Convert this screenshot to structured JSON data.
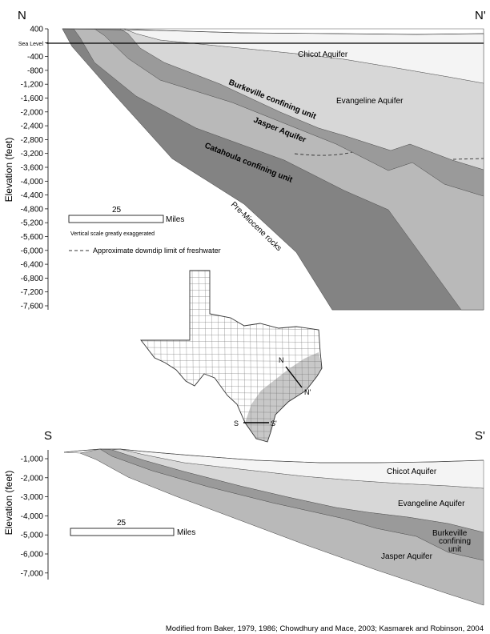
{
  "top_section": {
    "left_label": "N",
    "right_label": "N'",
    "y_axis_label": "Elevation (feet)",
    "y_ticks": [
      "400",
      "Sea Level",
      "-400",
      "-800",
      "-1,200",
      "-1,600",
      "-2,000",
      "-2,400",
      "-2,800",
      "-3,200",
      "-3,600",
      "-4,000",
      "-4,400",
      "-4,800",
      "-5,200",
      "-5,600",
      "-6,000",
      "-6,400",
      "-6,800",
      "-7,200",
      "-7,600"
    ],
    "units": {
      "chicot": "Chicot Aquifer",
      "evangeline": "Evangeline Aquifer",
      "burkeville": "Burkeville confining unit",
      "jasper": "Jasper  Aquifer",
      "catahoula": "Catahoula confining unit",
      "pre_miocene": "Pre-Miocene rocks"
    },
    "scale_value": "25",
    "scale_unit": "Miles",
    "vertical_note": "Vertical scale greatly exaggerated",
    "freshwater_legend": "Approximate downdip limit of freshwater"
  },
  "map": {
    "label_n": "N",
    "label_n_prime": "N'",
    "label_s": "S",
    "label_s_prime": "S'"
  },
  "bottom_section": {
    "left_label": "S",
    "right_label": "S'",
    "y_axis_label": "Elevation (feet)",
    "y_ticks": [
      "-1,000",
      "-2,000",
      "-3,000",
      "-4,000",
      "-5,000",
      "-6,000",
      "-7,000"
    ],
    "units": {
      "chicot": "Chicot  Aquifer",
      "evangeline": "Evangeline  Aquifer",
      "burkeville_1": "Burkeville",
      "burkeville_2": "confining",
      "burkeville_3": "unit",
      "jasper": "Jasper  Aquifer"
    },
    "scale_value": "25",
    "scale_unit": "Miles"
  },
  "credit": "Modified from Baker, 1979, 1986; Chowdhury and Mace, 2003; Kasmarek and Robinson, 2004",
  "colors": {
    "chicot": "#f4f4f4",
    "evangeline": "#d7d7d7",
    "burkeville": "#9a9a9a",
    "jasper": "#b9b9b9",
    "catahoula": "#838383",
    "pre_miocene": "#ffffff",
    "outcrop": "#c8c8c8"
  }
}
